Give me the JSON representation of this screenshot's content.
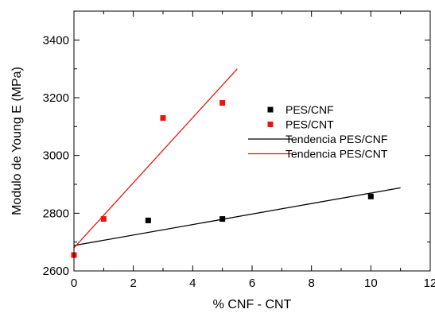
{
  "chart_data": {
    "type": "scatter",
    "xlabel": "% CNF - CNT",
    "ylabel": "Modulo de Young E (MPa)",
    "xlim": [
      0,
      12
    ],
    "ylim": [
      2600,
      3500
    ],
    "x_ticks": [
      0,
      2,
      4,
      6,
      8,
      10,
      12
    ],
    "y_ticks": [
      2600,
      2800,
      3000,
      3200,
      3400
    ],
    "x_tick_labels": [
      "0",
      "2",
      "4",
      "6",
      "8",
      "10",
      "12"
    ],
    "y_tick_labels": [
      "2600",
      "2800",
      "3000",
      "3200",
      "3400"
    ],
    "grid": false,
    "legend_position": "right",
    "series": [
      {
        "name": "PES/CNF",
        "kind": "points",
        "marker": "square",
        "color": "#000000",
        "points": [
          [
            0,
            2655
          ],
          [
            2.5,
            2775
          ],
          [
            5,
            2780
          ],
          [
            10,
            2858
          ]
        ]
      },
      {
        "name": "PES/CNT",
        "kind": "points",
        "marker": "square",
        "color": "#e8150f",
        "points": [
          [
            0,
            2655
          ],
          [
            1,
            2780
          ],
          [
            3,
            3130
          ],
          [
            5,
            3182
          ]
        ]
      },
      {
        "name": "Tendencia PES/CNF",
        "kind": "line",
        "color": "#000000",
        "points": [
          [
            0,
            2688
          ],
          [
            11,
            2888
          ]
        ]
      },
      {
        "name": "Tendencia PES/CNT",
        "kind": "line",
        "color": "#e8150f",
        "points": [
          [
            0,
            2680
          ],
          [
            5.5,
            3300
          ]
        ]
      }
    ]
  }
}
